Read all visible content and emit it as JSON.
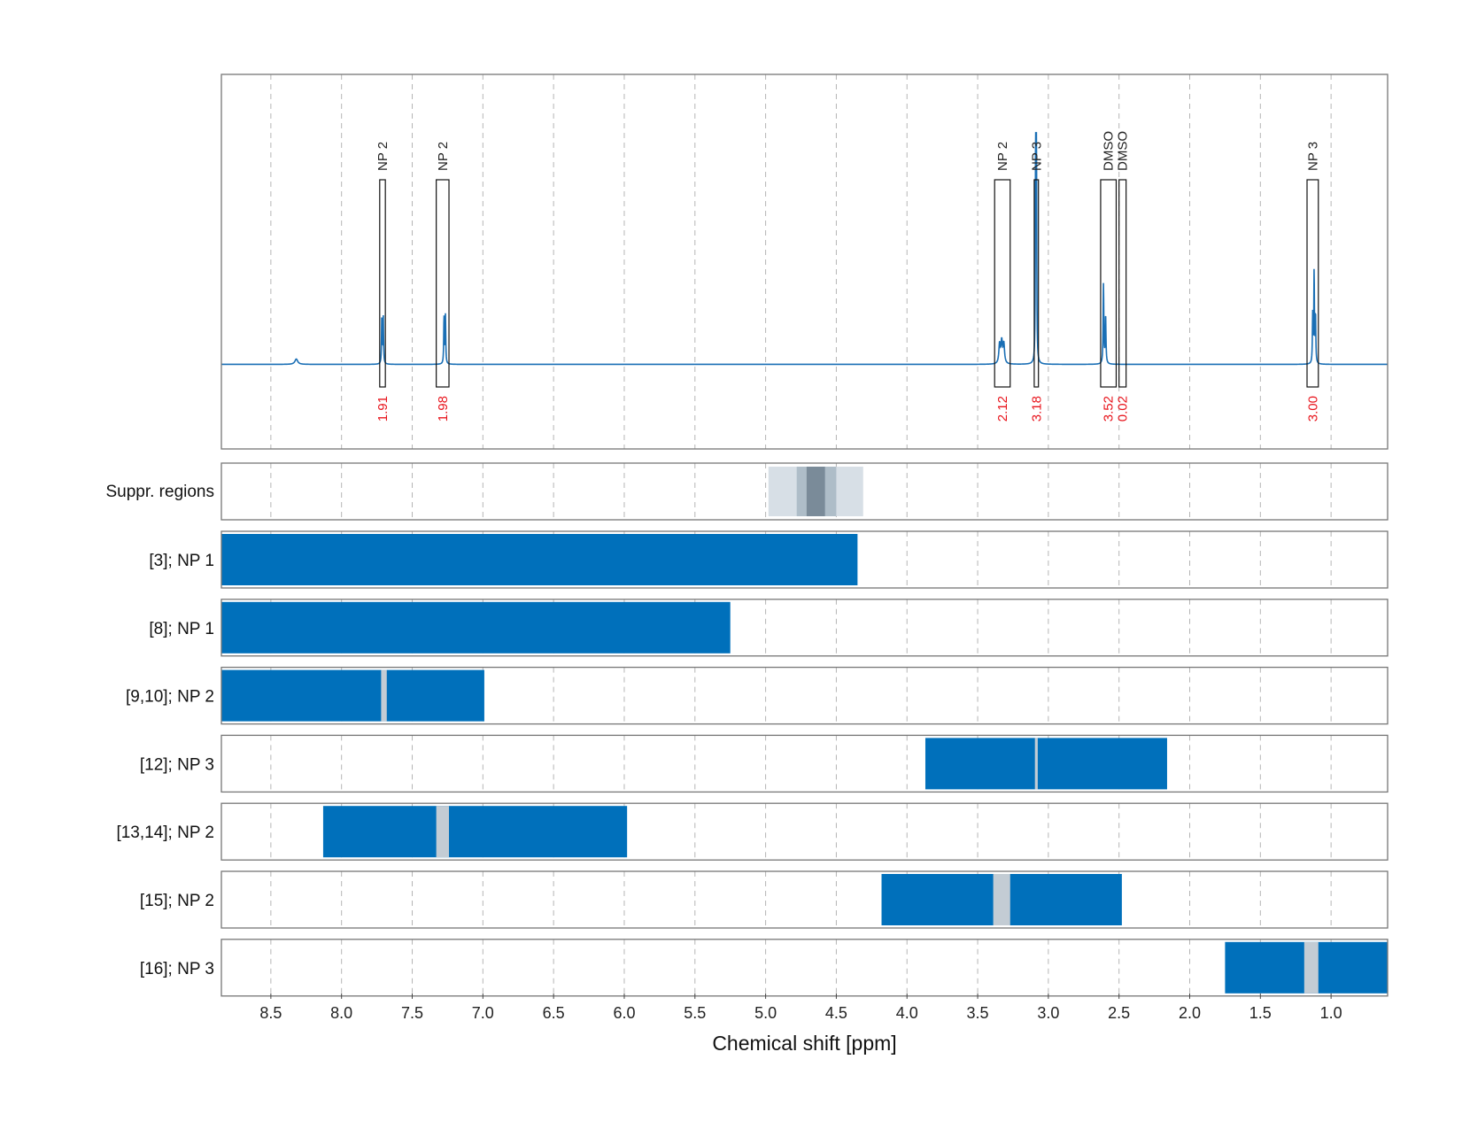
{
  "chart_data": {
    "type": "nmr-spectrum-with-regions",
    "xlabel": "Chemical shift [ppm]",
    "xlim": [
      8.85,
      0.6
    ],
    "x_ticks": [
      8.5,
      8.0,
      7.5,
      7.0,
      6.5,
      6.0,
      5.5,
      5.0,
      4.5,
      4.0,
      3.5,
      3.0,
      2.5,
      2.0,
      1.5,
      1.0
    ],
    "x_tick_labels": [
      "8.5",
      "8.0",
      "7.5",
      "7.0",
      "6.5",
      "6.0",
      "5.5",
      "5.0",
      "4.5",
      "4.0",
      "3.5",
      "3.0",
      "2.5",
      "2.0",
      "1.5",
      "1.0"
    ],
    "grid": true,
    "colors": {
      "spectrum": "#1a6fb5",
      "bar": "#0070bb",
      "gap": "#c3ccd4",
      "integral_text": "#e8141c",
      "suppression_light": "#d7dfe6",
      "suppression_mid": "#aebdc8",
      "suppression_dark": "#7a8b99"
    },
    "peaks": [
      {
        "label": "NP 2",
        "x_start": 7.73,
        "x_end": 7.69,
        "integral": "1.91"
      },
      {
        "label": "NP 2",
        "x_start": 7.33,
        "x_end": 7.24,
        "integral": "1.98"
      },
      {
        "label": "NP 2",
        "x_start": 3.38,
        "x_end": 3.27,
        "integral": "2.12"
      },
      {
        "label": "NP 3",
        "x_start": 3.1,
        "x_end": 3.07,
        "integral": "3.18"
      },
      {
        "label": "DMSO",
        "x_start": 2.63,
        "x_end": 2.52,
        "integral": "3.52"
      },
      {
        "label": "DMSO",
        "x_start": 2.5,
        "x_end": 2.45,
        "integral": "0.02"
      },
      {
        "label": "NP 3",
        "x_start": 1.17,
        "x_end": 1.09,
        "integral": "3.00"
      }
    ],
    "spectrum": {
      "baseline": 0.0,
      "ylim": [
        -0.35,
        1.2
      ],
      "signals": [
        {
          "x": 8.32,
          "height": 0.022,
          "width": 0.012
        },
        {
          "x": 7.715,
          "height": 0.195,
          "width": 0.0025
        },
        {
          "x": 7.705,
          "height": 0.2,
          "width": 0.0025
        },
        {
          "x": 7.275,
          "height": 0.195,
          "width": 0.0025
        },
        {
          "x": 7.265,
          "height": 0.2,
          "width": 0.0025
        },
        {
          "x": 3.345,
          "height": 0.08,
          "width": 0.006
        },
        {
          "x": 3.33,
          "height": 0.09,
          "width": 0.006
        },
        {
          "x": 3.315,
          "height": 0.08,
          "width": 0.006
        },
        {
          "x": 3.09,
          "height": 0.92,
          "width": 0.0022
        },
        {
          "x": 3.084,
          "height": 0.88,
          "width": 0.0022
        },
        {
          "x": 2.61,
          "height": 0.33,
          "width": 0.0028
        },
        {
          "x": 2.595,
          "height": 0.2,
          "width": 0.003
        },
        {
          "x": 1.13,
          "height": 0.2,
          "width": 0.0025
        },
        {
          "x": 1.12,
          "height": 0.38,
          "width": 0.0025
        },
        {
          "x": 1.11,
          "height": 0.2,
          "width": 0.0025
        }
      ]
    },
    "suppression_regions": {
      "label": "Suppr. regions",
      "bands": [
        {
          "x_start": 4.98,
          "x_end": 4.31,
          "shade": "light"
        },
        {
          "x_start": 4.78,
          "x_end": 4.5,
          "shade": "mid"
        },
        {
          "x_start": 4.71,
          "x_end": 4.58,
          "shade": "dark"
        }
      ]
    },
    "rows": [
      {
        "label": "[3]; NP 1",
        "x_start": 8.85,
        "x_end": 4.35,
        "gaps": []
      },
      {
        "label": "[8]; NP 1",
        "x_start": 8.85,
        "x_end": 5.25,
        "gaps": []
      },
      {
        "label": "[9,10]; NP 2",
        "x_start": 8.85,
        "x_end": 6.99,
        "gaps": [
          {
            "x_start": 7.72,
            "x_end": 7.68
          }
        ]
      },
      {
        "label": "[12]; NP 3",
        "x_start": 3.87,
        "x_end": 2.16,
        "gaps": [
          {
            "x_start": 3.095,
            "x_end": 3.075
          }
        ]
      },
      {
        "label": "[13,14]; NP 2",
        "x_start": 8.13,
        "x_end": 5.98,
        "gaps": [
          {
            "x_start": 7.33,
            "x_end": 7.24
          }
        ]
      },
      {
        "label": "[15]; NP 2",
        "x_start": 4.18,
        "x_end": 2.48,
        "gaps": [
          {
            "x_start": 3.39,
            "x_end": 3.27
          }
        ]
      },
      {
        "label": "[16]; NP 3",
        "x_start": 1.75,
        "x_end": 0.6,
        "gaps": [
          {
            "x_start": 1.19,
            "x_end": 1.09
          }
        ]
      }
    ]
  }
}
